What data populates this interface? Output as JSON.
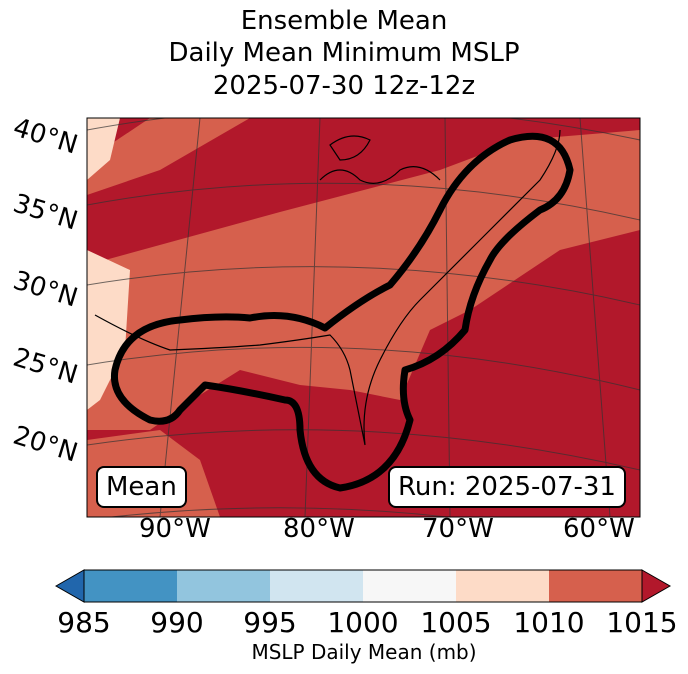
{
  "title": {
    "line1": "Ensemble Mean",
    "line2": "Daily Mean Minimum MSLP",
    "line3": "2025-07-30 12z-12z"
  },
  "lat_labels": [
    "40°N",
    "35°N",
    "30°N",
    "25°N",
    "20°N"
  ],
  "lon_labels": [
    "90°W",
    "80°W",
    "70°W",
    "60°W"
  ],
  "boxes": {
    "left": "Mean",
    "right": "Run: 2025-07-31"
  },
  "colorbar": {
    "ticks": [
      "985",
      "990",
      "995",
      "1000",
      "1005",
      "1010",
      "1015"
    ],
    "label": "MSLP Daily Mean (mb)",
    "colors": [
      "#2166ac",
      "#4393c3",
      "#92c5de",
      "#d1e5f0",
      "#f7f7f7",
      "#fddbc7",
      "#d6604d",
      "#b2182b"
    ]
  },
  "map_colors": {
    "deep": "#b2182b",
    "mid": "#d6604d",
    "light": "#fddbc7",
    "outline": "#000000"
  }
}
